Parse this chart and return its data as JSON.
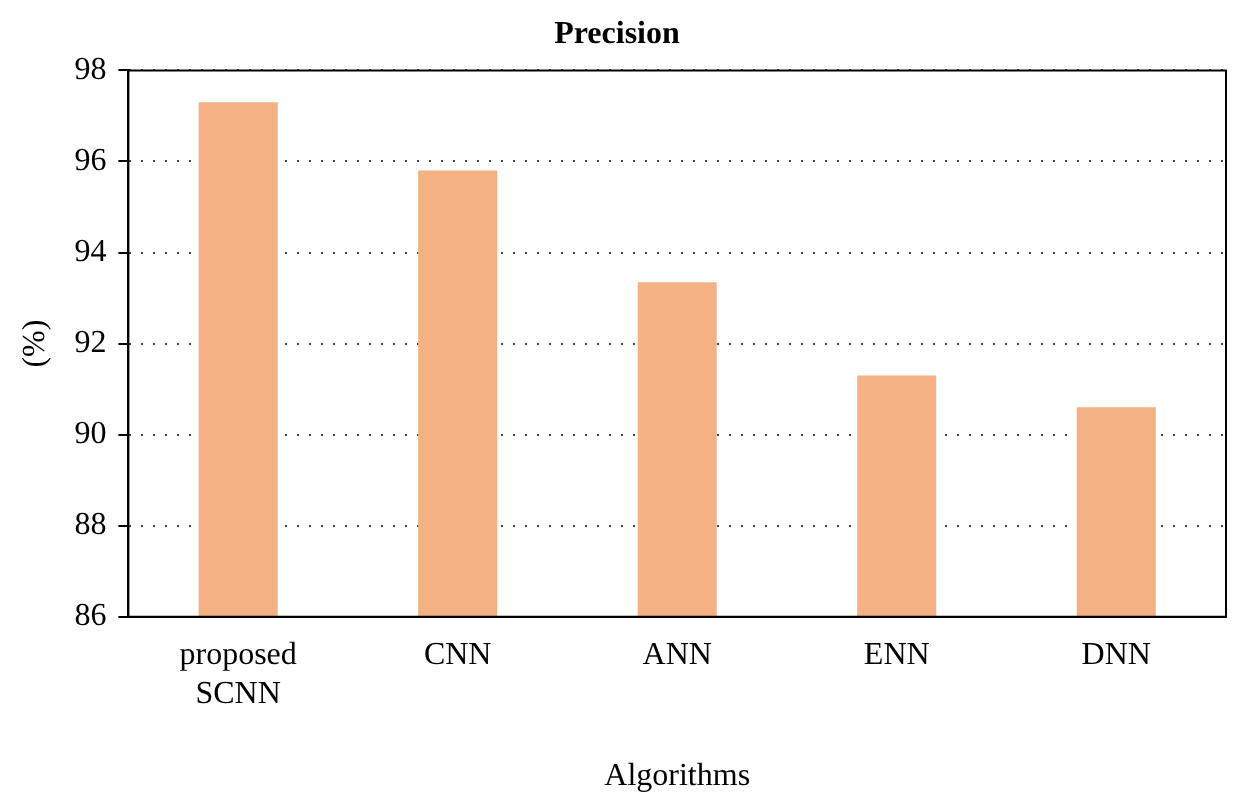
{
  "chart_data": {
    "type": "bar",
    "title": "Precision",
    "xlabel": "Algorithms",
    "ylabel": "(%)",
    "categories": [
      "proposed SCNN",
      "CNN",
      "ANN",
      "ENN",
      "DNN"
    ],
    "values": [
      97.3,
      95.8,
      93.35,
      91.3,
      90.6
    ],
    "color": "#f4b183",
    "ylim": [
      86,
      98
    ],
    "yticks": [
      86,
      88,
      90,
      92,
      94,
      96,
      98
    ],
    "grid": "y",
    "legend": false
  }
}
